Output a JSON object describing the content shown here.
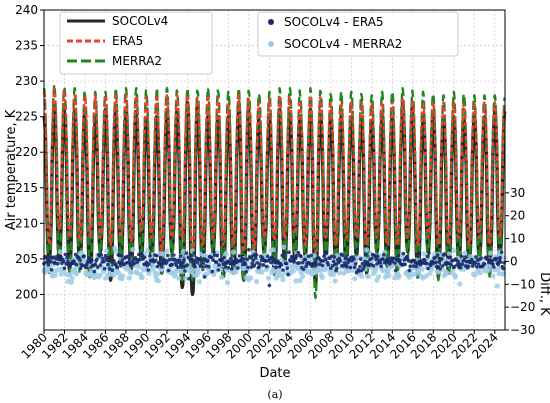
{
  "chart_data": {
    "type": "line",
    "xlabel": "Date",
    "ylabel": "Air temperature, K",
    "y2label": "Diff., K",
    "caption": "(a)",
    "xlim": [
      1980,
      2025
    ],
    "ylim": [
      195,
      240
    ],
    "y2lim": [
      -30,
      110
    ],
    "x_ticks": [
      "1980",
      "1982",
      "1984",
      "1986",
      "1988",
      "1990",
      "1992",
      "1994",
      "1996",
      "1998",
      "2000",
      "2002",
      "2004",
      "2006",
      "2008",
      "2010",
      "2012",
      "2014",
      "2016",
      "2018",
      "2020",
      "2022",
      "2024"
    ],
    "y_ticks": [
      200,
      205,
      210,
      215,
      220,
      225,
      230,
      235,
      240
    ],
    "y2_ticks": [
      -30,
      -20,
      -10,
      0,
      10,
      20,
      30
    ],
    "grid": true,
    "legend_placement": "top",
    "series": [
      {
        "name": "SOCOLv4",
        "color": "#262626",
        "style": "solid",
        "seasonal_min": [
          204.5,
          205,
          203.5,
          204,
          202.5,
          206,
          202,
          204.5,
          203.5,
          205,
          204.5,
          203,
          206,
          201,
          200,
          203.5,
          206,
          202.5,
          203,
          202,
          204,
          206,
          203,
          204.5,
          205,
          205.5,
          201.5,
          205,
          204,
          204,
          205.5,
          203,
          206,
          204,
          203.5,
          206,
          202.5,
          206,
          202.5,
          203,
          204.5,
          204,
          205,
          203,
          205
        ],
        "seasonal_max": [
          225,
          226.5,
          225.5,
          226,
          224,
          225,
          226,
          225,
          226,
          225,
          224,
          225,
          226,
          225,
          227,
          225,
          225,
          225,
          225,
          227,
          225,
          224,
          225,
          226,
          225,
          225,
          226,
          225,
          224.5,
          225,
          225,
          224.5,
          224.5,
          225,
          225,
          227,
          224,
          225.5,
          225,
          225,
          225,
          224.5,
          225,
          225,
          226
        ]
      },
      {
        "name": "ERA5",
        "color": "#f03c32",
        "style": "dashed",
        "seasonal_min": [
          207,
          209,
          208,
          207.5,
          208,
          208,
          207,
          208,
          207.5,
          209,
          208,
          206,
          208,
          208,
          205,
          207,
          208,
          207,
          207,
          206,
          206.5,
          208,
          207.5,
          208,
          208.5,
          207,
          206,
          208,
          207,
          208,
          208,
          207,
          208,
          207,
          207,
          208,
          207,
          208,
          207,
          207,
          208,
          207,
          208,
          207,
          208
        ],
        "seasonal_max": [
          228.5,
          229,
          228,
          228,
          227.5,
          228,
          228,
          228,
          228,
          228,
          227.5,
          228,
          228,
          228,
          228,
          227.5,
          228,
          227,
          227,
          228,
          227,
          227,
          227.5,
          228,
          227.5,
          227,
          228,
          227.5,
          226.5,
          227,
          227,
          227,
          227,
          227,
          227,
          227.5,
          227,
          227,
          227,
          227,
          227,
          226.5,
          227,
          227,
          227
        ]
      },
      {
        "name": "MERRA2",
        "color": "#22861f",
        "style": "dashed",
        "seasonal_min": [
          203,
          204.5,
          203,
          203,
          202.5,
          205,
          202.5,
          205,
          203,
          205,
          204,
          203,
          205,
          202,
          202,
          203.5,
          205,
          202.5,
          203,
          202,
          204,
          205,
          202.5,
          204.5,
          205,
          205,
          199.5,
          205,
          204,
          204,
          205,
          203,
          205,
          204,
          203,
          205,
          202,
          205,
          202,
          203,
          204,
          204,
          205,
          202.5,
          205
        ],
        "seasonal_max": [
          229,
          229.5,
          229,
          229,
          228,
          228.5,
          228.5,
          229,
          229,
          229,
          228,
          229,
          229,
          228.5,
          229,
          228.5,
          229,
          228.5,
          228.5,
          229,
          228.5,
          228,
          228.5,
          229,
          229,
          228,
          229,
          228.5,
          228,
          228.5,
          228.5,
          228,
          228,
          228.5,
          228.5,
          229,
          228,
          228.5,
          228,
          228,
          228.5,
          228,
          228,
          228,
          228
        ]
      }
    ],
    "scatter_series": [
      {
        "name": "SOCOLv4 - ERA5",
        "color": "#1b2a6e",
        "mean": 0,
        "spread": 3
      },
      {
        "name": "SOCOLv4 - MERRA2",
        "color": "#9fcbe8",
        "mean": -2,
        "spread": 5
      }
    ],
    "colors": {
      "axis": "#000000",
      "grid": "#d0d0d0"
    }
  }
}
